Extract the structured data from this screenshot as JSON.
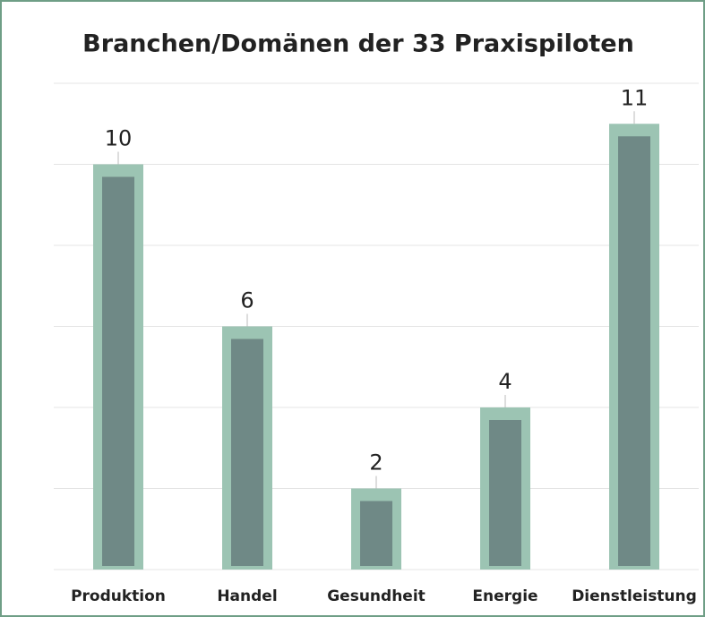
{
  "chart_data": {
    "type": "bar",
    "title": "Branchen/Domänen der 33 Praxispiloten",
    "categories": [
      "Produktion",
      "Handel",
      "Gesundheit",
      "Energie",
      "Dienstleistung"
    ],
    "values": [
      10,
      6,
      2,
      4,
      11
    ],
    "color": "#9cc4b3",
    "ylim": [
      0,
      12
    ],
    "yticks": [
      0,
      2,
      4,
      6,
      8,
      10,
      12
    ],
    "grid": true
  }
}
